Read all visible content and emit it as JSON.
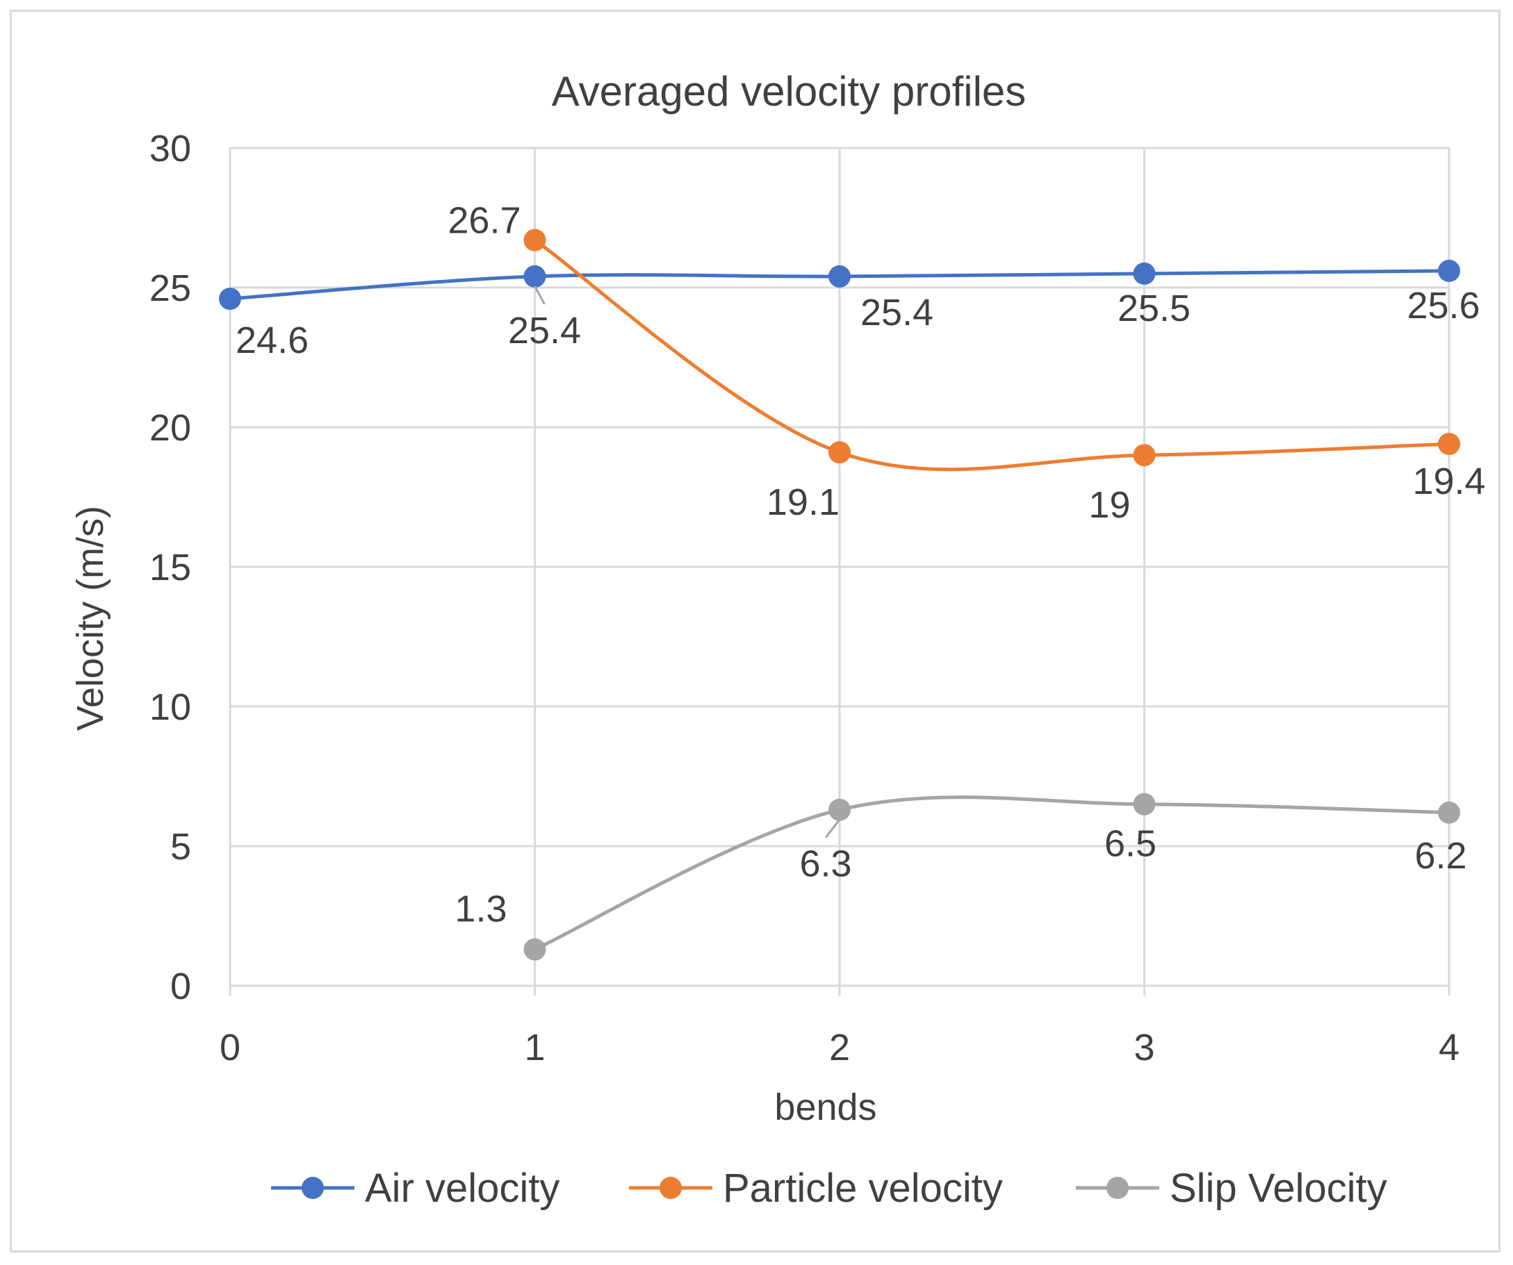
{
  "chart_data": {
    "type": "line",
    "title": "Averaged velocity profiles",
    "xlabel": "bends",
    "ylabel": "Velocity (m/s)",
    "xlim": [
      0,
      4
    ],
    "ylim": [
      0,
      30
    ],
    "xticks": [
      "0",
      "1",
      "2",
      "3",
      "4"
    ],
    "yticks": [
      "0",
      "5",
      "10",
      "15",
      "20",
      "25",
      "30"
    ],
    "grid": true,
    "smooth": true,
    "legend_position": "bottom",
    "series": [
      {
        "name": "Air velocity",
        "color": "#4472c4",
        "x": [
          0,
          1,
          2,
          3,
          4
        ],
        "values": [
          24.6,
          25.4,
          25.4,
          25.5,
          25.6
        ],
        "labels": [
          "24.6",
          "25.4",
          "25.4",
          "25.5",
          "25.6"
        ]
      },
      {
        "name": "Particle velocity",
        "color": "#ed7d31",
        "x": [
          1,
          2,
          3,
          4
        ],
        "values": [
          26.7,
          19.1,
          19,
          19.4
        ],
        "labels": [
          "26.7",
          "19.1",
          "19",
          "19.4"
        ]
      },
      {
        "name": "Slip Velocity",
        "color": "#a5a5a5",
        "x": [
          1,
          2,
          3,
          4
        ],
        "values": [
          1.3,
          6.3,
          6.5,
          6.2
        ],
        "labels": [
          "1.3",
          "6.3",
          "6.5",
          "6.2"
        ]
      }
    ]
  }
}
